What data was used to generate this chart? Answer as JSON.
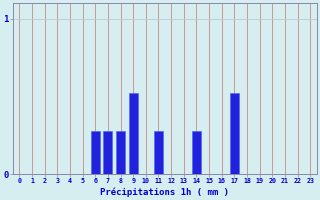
{
  "categories": [
    0,
    1,
    2,
    3,
    4,
    5,
    6,
    7,
    8,
    9,
    10,
    11,
    12,
    13,
    14,
    15,
    16,
    17,
    18,
    19,
    20,
    21,
    22,
    23
  ],
  "values": [
    0,
    0,
    0,
    0,
    0,
    0,
    0.28,
    0.28,
    0.28,
    0.52,
    0,
    0.28,
    0,
    0,
    0.28,
    0,
    0,
    0.52,
    0,
    0,
    0,
    0,
    0,
    0
  ],
  "bar_color": "#2222dd",
  "bar_edge_color": "#4466ff",
  "background_color": "#d6eef0",
  "vgrid_color": "#cc8888",
  "hgrid_color": "#bbcccc",
  "axis_color": "#8888aa",
  "text_color": "#0000cc",
  "xlabel": "Précipitations 1h ( mm )",
  "ytick_labels": [
    "0",
    "1"
  ],
  "ytick_values": [
    0,
    1
  ],
  "ylim": [
    0,
    1.1
  ],
  "xlim": [
    -0.5,
    23.5
  ]
}
